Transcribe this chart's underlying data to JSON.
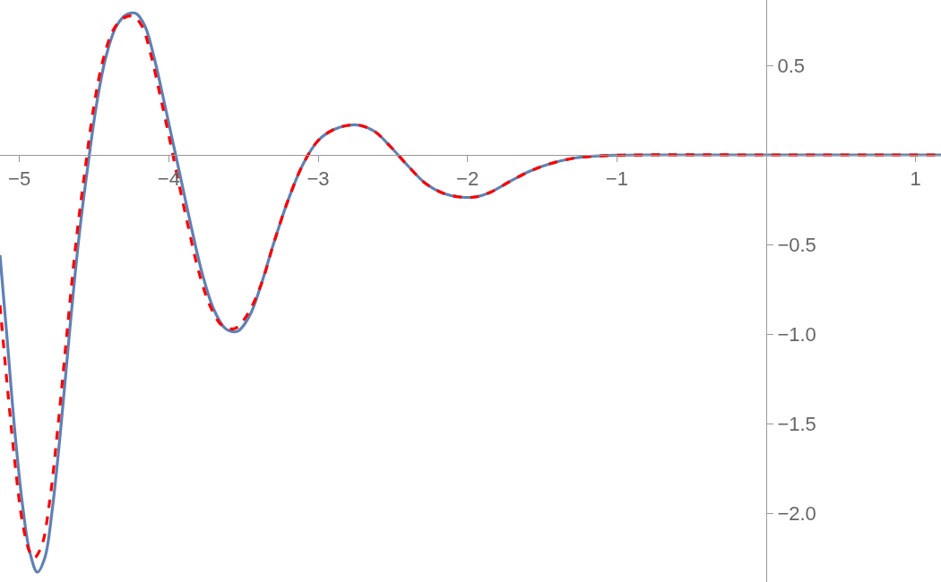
{
  "chart_data": {
    "type": "line",
    "xlim": [
      -5.13,
      1.17
    ],
    "ylim": [
      -2.385,
      0.865
    ],
    "xticks": [
      {
        "value": -5,
        "label": "−5"
      },
      {
        "value": -4,
        "label": "−4"
      },
      {
        "value": -3,
        "label": "−3"
      },
      {
        "value": -2,
        "label": "−2"
      },
      {
        "value": -1,
        "label": "−1"
      },
      1
    ],
    "yticks": [
      0.5,
      {
        "value": -0.5,
        "label": "−0.5"
      },
      {
        "value": -1,
        "label": "−1.0"
      },
      {
        "value": -1.5,
        "label": "−1.5"
      },
      {
        "value": -2,
        "label": "−2.0"
      }
    ],
    "grid": false,
    "marker": "none",
    "series": [
      {
        "color": "#5e81b5",
        "line_style": "solid",
        "x": [
          -5.13,
          -5.08,
          -5.03,
          -4.98,
          -4.93,
          -4.88,
          -4.83,
          -4.78,
          -4.72,
          -4.66,
          -4.6,
          -4.54,
          -4.48,
          -4.42,
          -4.35,
          -4.28,
          -4.22,
          -4.16,
          -4.1,
          -4.04,
          -3.98,
          -3.92,
          -3.85,
          -3.78,
          -3.7,
          -3.62,
          -3.54,
          -3.46,
          -3.38,
          -3.3,
          -3.2,
          -3.1,
          -3,
          -2.9,
          -2.8,
          -2.72,
          -2.62,
          -2.52,
          -2.4,
          -2.28,
          -2.16,
          -2.05,
          -1.95,
          -1.85,
          -1.72,
          -1.58,
          -1.45,
          -1.3,
          -1.15,
          -1,
          -0.8,
          0,
          1.17
        ],
        "values": [
          -0.56,
          -1.05,
          -1.55,
          -1.95,
          -2.22,
          -2.33,
          -2.25,
          -1.98,
          -1.5,
          -0.95,
          -0.45,
          -0.05,
          0.3,
          0.55,
          0.72,
          0.785,
          0.79,
          0.72,
          0.55,
          0.33,
          0.1,
          -0.13,
          -0.4,
          -0.65,
          -0.86,
          -0.97,
          -0.985,
          -0.9,
          -0.72,
          -0.5,
          -0.25,
          -0.05,
          0.08,
          0.14,
          0.165,
          0.165,
          0.13,
          0.05,
          -0.06,
          -0.16,
          -0.215,
          -0.235,
          -0.235,
          -0.21,
          -0.15,
          -0.09,
          -0.05,
          -0.02,
          -0.007,
          -0.002,
          0,
          0,
          0
        ]
      },
      {
        "color": "#ff0000",
        "line_style": "dashed",
        "x": [
          -5.13,
          -5.08,
          -5.03,
          -4.98,
          -4.93,
          -4.9,
          -4.85,
          -4.8,
          -4.74,
          -4.68,
          -4.62,
          -4.56,
          -4.5,
          -4.44,
          -4.37,
          -4.3,
          -4.24,
          -4.18,
          -4.12,
          -4.06,
          -4,
          -3.94,
          -3.87,
          -3.8,
          -3.72,
          -3.64,
          -3.56,
          -3.48,
          -3.38,
          -3.3,
          -3.2,
          -3.1,
          -3,
          -2.9,
          -2.8,
          -2.72,
          -2.62,
          -2.52,
          -2.4,
          -2.28,
          -2.16,
          -2.05,
          -1.95,
          -1.85,
          -1.72,
          -1.58,
          -1.45,
          -1.3,
          -1.15,
          -1,
          -0.8,
          0,
          1.17
        ],
        "values": [
          -0.84,
          -1.3,
          -1.72,
          -2.05,
          -2.22,
          -2.25,
          -2.18,
          -1.95,
          -1.5,
          -0.98,
          -0.48,
          -0.08,
          0.28,
          0.53,
          0.7,
          0.765,
          0.775,
          0.72,
          0.56,
          0.34,
          0.11,
          -0.13,
          -0.4,
          -0.65,
          -0.85,
          -0.955,
          -0.97,
          -0.9,
          -0.72,
          -0.5,
          -0.25,
          -0.05,
          0.08,
          0.14,
          0.165,
          0.165,
          0.13,
          0.05,
          -0.06,
          -0.16,
          -0.215,
          -0.235,
          -0.235,
          -0.21,
          -0.15,
          -0.09,
          -0.05,
          -0.02,
          -0.007,
          -0.002,
          0,
          0,
          0
        ]
      }
    ]
  }
}
